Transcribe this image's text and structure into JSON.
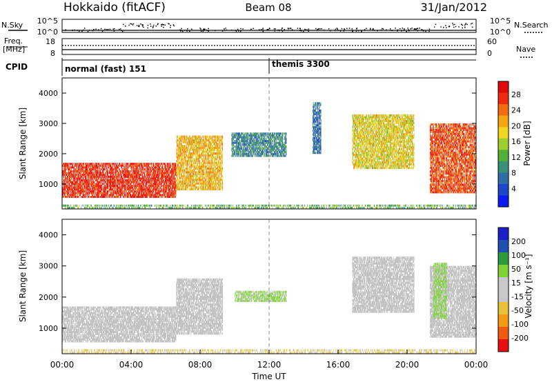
{
  "header": {
    "station": "Hokkaido (fitACF)",
    "beam": "Beam 08",
    "date": "31/Jan/2012"
  },
  "colors": {
    "power": [
      "#0b1bf0",
      "#1e46c8",
      "#2f6ea4",
      "#3a8f7a",
      "#52b03a",
      "#9ecf2f",
      "#f0d71f",
      "#f5a414",
      "#f36d10",
      "#ef2a0f",
      "#e10909"
    ],
    "velocity_scale": [
      "#e81010",
      "#f25a12",
      "#f59a16",
      "#e8c03a",
      "#c8c8c8",
      "#c8c8c8",
      "#7dd434",
      "#2e9a3a",
      "#1f4fb0",
      "#1b20c8"
    ],
    "ground_scatter": "#bdbdbd"
  },
  "top_panels": {
    "nsky_label": "N.Sky",
    "nsearch_label": "N.Search",
    "nsky_ticks": [
      "10^5",
      "10^0"
    ],
    "nsearch_ticks": [
      "10^5",
      "10^0"
    ],
    "freq_label": "Freq.",
    "freq_unit": "[MHz]",
    "freq_ticks": [
      "18",
      "8"
    ],
    "nave_label": "Nave",
    "nave_ticks": [
      "60",
      "0"
    ],
    "cpid_label": "CPID",
    "cpid_modes": [
      {
        "label": "normal (fast) 151",
        "start_hour": 0,
        "end_hour": 12
      },
      {
        "label": "themis 3300",
        "start_hour": 12,
        "end_hour": 24
      }
    ]
  },
  "panels": {
    "power": {
      "ylabel": "Slant Range [km]",
      "cbar_label": "Power [dB]",
      "cbar_ticks": [
        "28",
        "24",
        "20",
        "16",
        "12",
        "8",
        "4"
      ]
    },
    "velocity": {
      "ylabel": "Slant Range [km]",
      "cbar_label": "Velocity [m s⁻¹]",
      "cbar_ticks": [
        "200",
        "100",
        "50",
        "15",
        "-15",
        "-50",
        "-100",
        "-200"
      ]
    }
  },
  "xaxis": {
    "label": "Time UT",
    "ticks": [
      "00:00",
      "04:00",
      "08:00",
      "12:00",
      "16:00",
      "20:00",
      "00:00"
    ]
  },
  "chart_data": {
    "type": "heatmap",
    "title": "Hokkaido (fitACF)",
    "subtitle": "Beam 08",
    "date": "31/Jan/2012",
    "xlabel": "Time UT",
    "ylabel": "Slant Range [km]",
    "xlim_hours": [
      0,
      24
    ],
    "ylim_km": [
      180,
      4500
    ],
    "yticks_km": [
      1000,
      2000,
      3000,
      4000
    ],
    "xticks_hours": [
      0,
      4,
      8,
      12,
      16,
      20,
      24
    ],
    "panels": [
      {
        "name": "power",
        "unit": "dB",
        "colorbar_ticks": [
          28,
          24,
          20,
          16,
          12,
          8,
          4
        ],
        "colorbar_range": [
          0,
          30
        ],
        "scatter_regions": [
          {
            "t0": 0.0,
            "t1": 6.6,
            "r0": 550,
            "r1": 1700,
            "value": 28
          },
          {
            "t0": 6.6,
            "t1": 9.3,
            "r0": 800,
            "r1": 2600,
            "value": 20
          },
          {
            "t0": 9.8,
            "t1": 13.0,
            "r0": 1900,
            "r1": 2700,
            "value": 8
          },
          {
            "t0": 14.5,
            "t1": 15.0,
            "r0": 2000,
            "r1": 3700,
            "value": 6
          },
          {
            "t0": 16.8,
            "t1": 20.4,
            "r0": 1500,
            "r1": 3300,
            "value": 18
          },
          {
            "t0": 21.3,
            "t1": 24.0,
            "r0": 700,
            "r1": 3000,
            "value": 26
          }
        ],
        "near_range_band": {
          "t0": 0,
          "t1": 24,
          "r0": 180,
          "r1": 330,
          "value": 12
        }
      },
      {
        "name": "velocity",
        "unit": "m s-1",
        "colorbar_ticks": [
          200,
          100,
          50,
          15,
          -15,
          -50,
          -100,
          -200
        ],
        "colorbar_range": [
          -250,
          250
        ],
        "scatter_regions": [
          {
            "t0": 0.0,
            "t1": 6.6,
            "r0": 550,
            "r1": 1700,
            "value": 0,
            "ground_scatter": true
          },
          {
            "t0": 6.6,
            "t1": 9.3,
            "r0": 800,
            "r1": 2600,
            "value": 0,
            "ground_scatter": true
          },
          {
            "t0": 10.0,
            "t1": 13.0,
            "r0": 1850,
            "r1": 2200,
            "value": 60
          },
          {
            "t0": 16.8,
            "t1": 20.4,
            "r0": 1500,
            "r1": 3300,
            "value": 0,
            "ground_scatter": true
          },
          {
            "t0": 21.3,
            "t1": 24.0,
            "r0": 700,
            "r1": 3000,
            "value": 0,
            "ground_scatter": true
          },
          {
            "t0": 21.5,
            "t1": 22.3,
            "r0": 1300,
            "r1": 3100,
            "value": 60
          }
        ],
        "near_range_band": {
          "t0": 0,
          "t1": 24,
          "r0": 180,
          "r1": 330,
          "value": -60
        }
      }
    ]
  }
}
